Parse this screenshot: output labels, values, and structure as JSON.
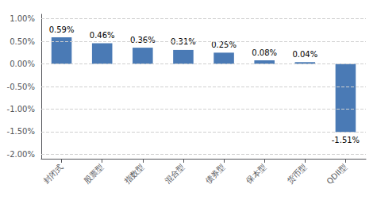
{
  "chart_data": {
    "type": "bar",
    "categories": [
      "封闭式",
      "股票型",
      "指数型",
      "混合型",
      "债券型",
      "保本型",
      "货币型",
      "QDII型"
    ],
    "values": [
      0.59,
      0.46,
      0.36,
      0.31,
      0.25,
      0.08,
      0.04,
      -1.51
    ],
    "value_labels": [
      "0.59%",
      "0.46%",
      "0.36%",
      "0.31%",
      "0.25%",
      "0.08%",
      "0.04%",
      "-1.51%"
    ],
    "data_labels": true,
    "color": "#4a7ab5",
    "ylim": [
      -2.1,
      1.1
    ],
    "yticks": [
      {
        "value": -2.0,
        "label": "-2.00%"
      },
      {
        "value": -1.5,
        "label": "-1.50%"
      },
      {
        "value": -1.0,
        "label": "-1.00%"
      },
      {
        "value": -0.5,
        "label": "-0.50%"
      },
      {
        "value": 0.0,
        "label": "0.00%"
      },
      {
        "value": 0.5,
        "label": "0.50%"
      },
      {
        "value": 1.0,
        "label": "1.00%"
      }
    ],
    "grid": true
  }
}
